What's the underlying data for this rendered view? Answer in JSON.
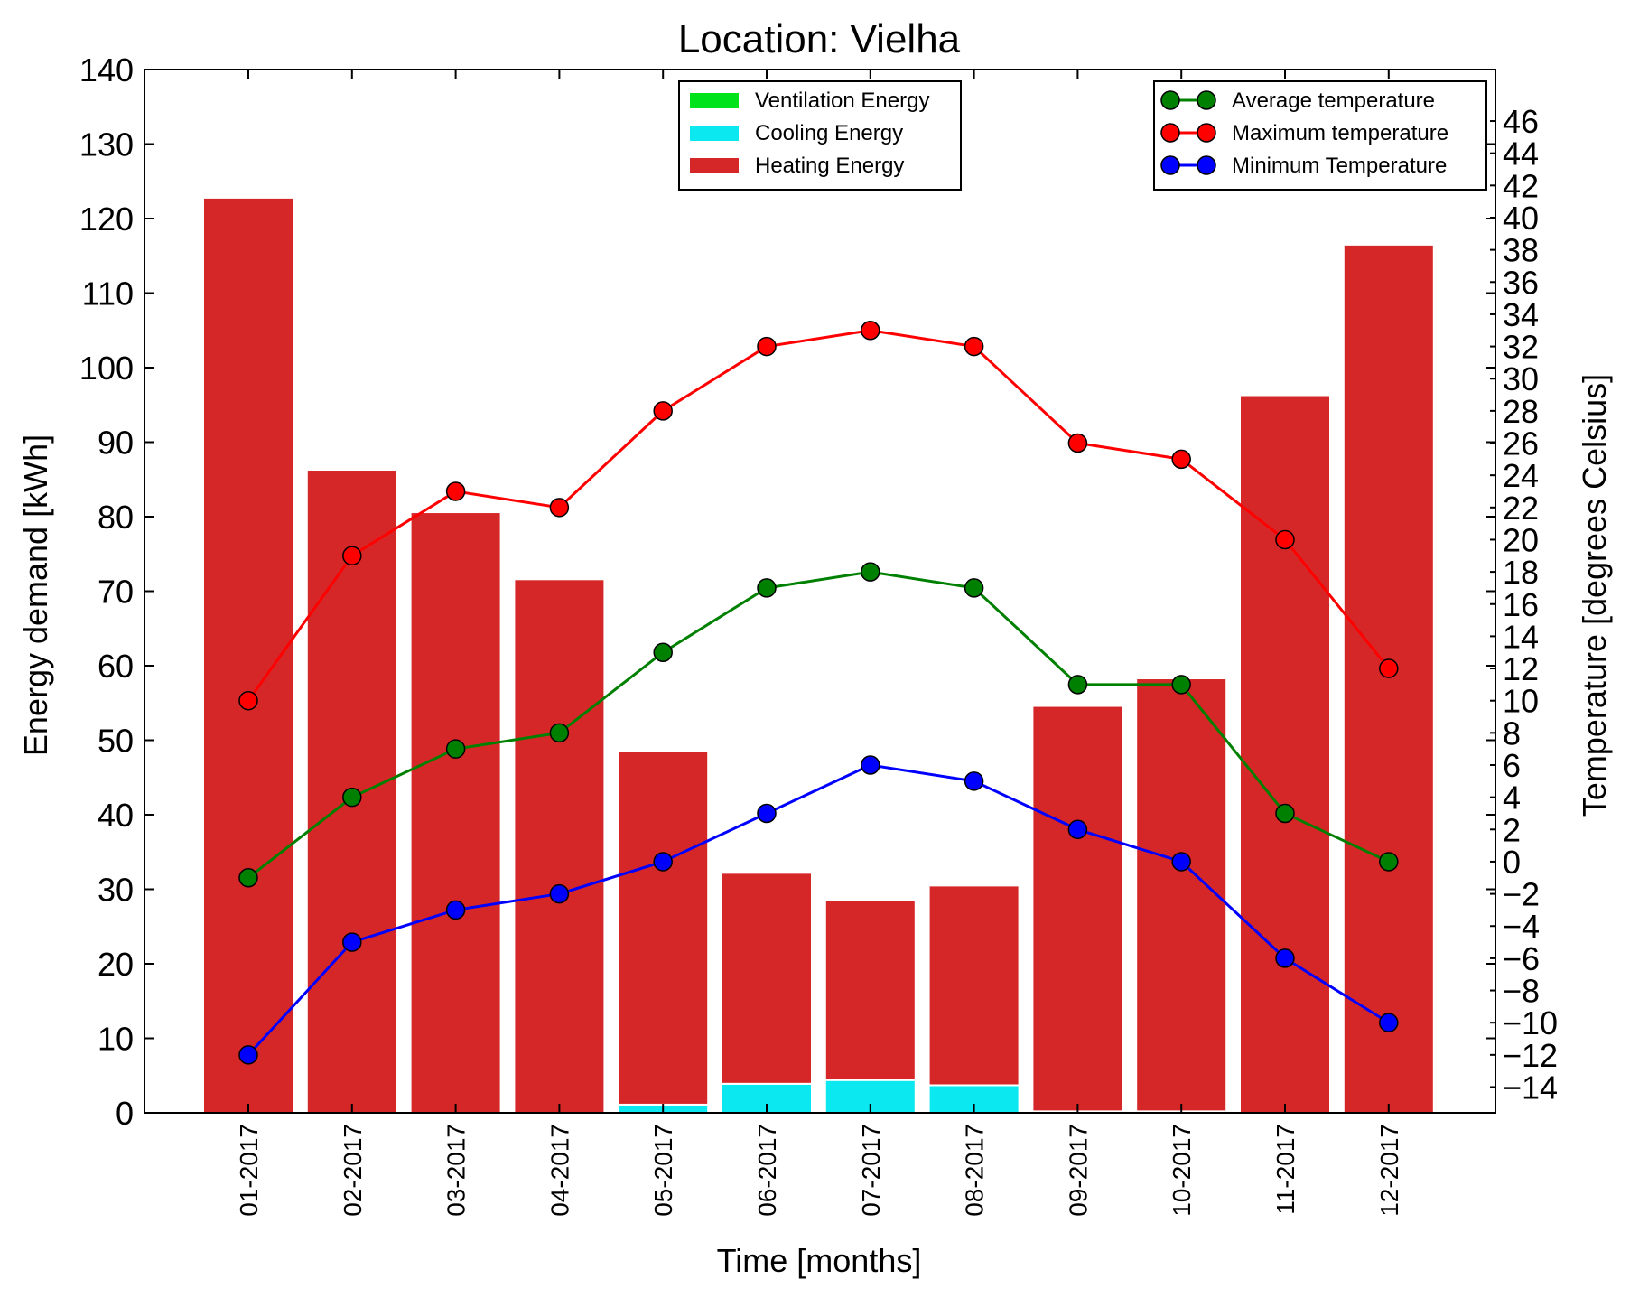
{
  "chart_data": {
    "type": "bar",
    "title": "Location: Vielha",
    "xlabel": "Time [months]",
    "ylabel": "Energy demand [kWh]",
    "y2label": "Temperature [degrees Celsius]",
    "categories": [
      "01-2017",
      "02-2017",
      "03-2017",
      "04-2017",
      "05-2017",
      "06-2017",
      "07-2017",
      "08-2017",
      "09-2017",
      "10-2017",
      "11-2017",
      "12-2017"
    ],
    "ylim": [
      0,
      140
    ],
    "yticks": [
      0,
      10,
      20,
      30,
      40,
      50,
      60,
      70,
      80,
      90,
      100,
      110,
      120,
      130,
      140
    ],
    "y2lim": [
      -15.6,
      49.2
    ],
    "y2ticks": [
      -14,
      -12,
      -10,
      -8,
      -6,
      -4,
      -2,
      0,
      2,
      4,
      6,
      8,
      10,
      12,
      14,
      16,
      18,
      20,
      22,
      24,
      26,
      28,
      30,
      32,
      34,
      36,
      38,
      40,
      42,
      44,
      46
    ],
    "grid": false,
    "bar_series": [
      {
        "name": "Ventilation Energy",
        "color": "#00e31a",
        "values": [
          0,
          0,
          0,
          0,
          0,
          0,
          0,
          0,
          0,
          0,
          0,
          0
        ]
      },
      {
        "name": "Cooling Energy",
        "color": "#0be8ef",
        "values": [
          0,
          0,
          0,
          0,
          1.1,
          3.9,
          4.4,
          3.7,
          0.2,
          0.2,
          0,
          0
        ]
      },
      {
        "name": "Heating Energy",
        "color": "#d62728",
        "values": [
          122.8,
          86.3,
          80.6,
          71.6,
          47.5,
          28.3,
          24.1,
          26.8,
          54.4,
          58.1,
          96.3,
          116.5
        ]
      }
    ],
    "line_series": [
      {
        "name": "Average temperature",
        "color": "#008000",
        "values": [
          -1,
          4,
          7,
          8,
          13,
          17,
          18,
          17,
          11,
          11,
          3,
          0
        ]
      },
      {
        "name": "Maximum temperature",
        "color": "#ff0000",
        "values": [
          10,
          19,
          23,
          22,
          28,
          32,
          33,
          32,
          26,
          25,
          20,
          12
        ]
      },
      {
        "name": "Minimum Temperature",
        "color": "#0000ff",
        "values": [
          -12,
          -5,
          -3,
          -2,
          0,
          3,
          6,
          5,
          2,
          0,
          -6,
          -10
        ]
      }
    ],
    "bar_legend_position": "top-center",
    "line_legend_position": "top-right"
  }
}
